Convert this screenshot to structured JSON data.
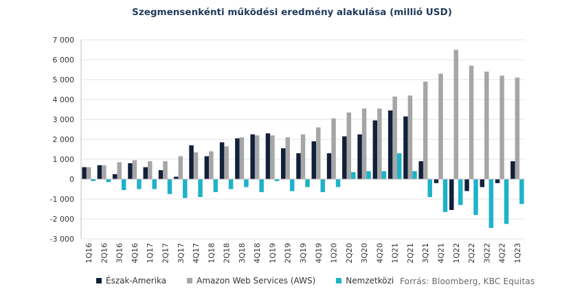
{
  "chart_data": {
    "type": "bar",
    "title": "Szegmensenkénti működési eredmény alakulása (millió USD)",
    "source": "Forrás: Bloomberg, KBC Equitas",
    "ylim": [
      -3000,
      7000
    ],
    "yticks": [
      7000,
      6000,
      5000,
      4000,
      3000,
      2000,
      1000,
      0,
      -1000,
      -2000,
      -3000
    ],
    "ytick_labels": [
      "7 000",
      "6 000",
      "5 000",
      "4 000",
      "3 000",
      "2 000",
      "1 000",
      "0",
      "-1 000",
      "-2 000",
      "-3 000"
    ],
    "grid": true,
    "legend_position": "bottom",
    "categories": [
      "1Q16",
      "2Q16",
      "3Q16",
      "4Q16",
      "1Q17",
      "2Q17",
      "3Q17",
      "4Q17",
      "1Q18",
      "2Q18",
      "3Q18",
      "4Q18",
      "1Q19",
      "2Q19",
      "3Q19",
      "4Q19",
      "1Q20",
      "2Q20",
      "3Q20",
      "4Q20",
      "1Q21",
      "2Q21",
      "3Q21",
      "4Q21",
      "1Q22",
      "2Q22",
      "3Q22",
      "4Q22",
      "1Q23"
    ],
    "series": [
      {
        "name": "Észak-Amerika",
        "color": "#12203a",
        "values": [
          600,
          700,
          250,
          800,
          600,
          450,
          120,
          1700,
          1150,
          1850,
          2050,
          2250,
          2300,
          1550,
          1300,
          1900,
          1300,
          2150,
          2250,
          2950,
          3450,
          3150,
          900,
          -200,
          -1550,
          -600,
          -400,
          -200,
          900
        ]
      },
      {
        "name": "Amazon Web Services (AWS)",
        "color": "#a6a6a6",
        "values": [
          600,
          700,
          850,
          950,
          900,
          900,
          1150,
          1350,
          1400,
          1650,
          2100,
          2200,
          2200,
          2100,
          2250,
          2600,
          3050,
          3350,
          3550,
          3550,
          4150,
          4200,
          4900,
          5300,
          6500,
          5700,
          5400,
          5200,
          5100
        ]
      },
      {
        "name": "Nemzetközi",
        "color": "#1eb2c8",
        "values": [
          -100,
          -150,
          -550,
          -500,
          -500,
          -750,
          -950,
          -900,
          -650,
          -500,
          -400,
          -650,
          -100,
          -600,
          -400,
          -650,
          -400,
          350,
          400,
          400,
          1300,
          400,
          -900,
          -1650,
          -1300,
          -1800,
          -2450,
          -2250,
          -1250
        ]
      }
    ]
  }
}
